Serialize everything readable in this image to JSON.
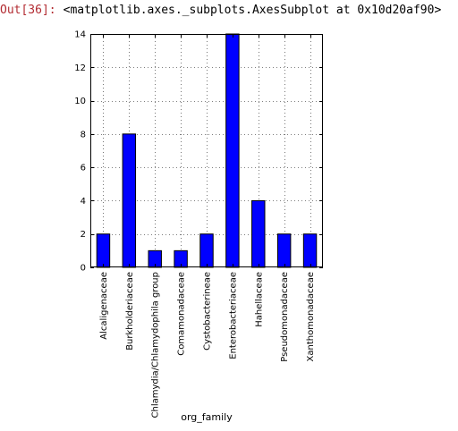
{
  "cell": {
    "prompt": "Out[36]:",
    "text": "<matplotlib.axes._subplots.AxesSubplot at 0x10d20af90>"
  },
  "chart_data": {
    "type": "bar",
    "categories": [
      "Alcaligenaceae",
      "Burkholderiaceae",
      "Chlamydia/Chlamydophila group",
      "Comamonadaceae",
      "Cystobacterineae",
      "Enterobacteriaceae",
      "Hahellaceae",
      "Pseudomonadaceae",
      "Xanthomonadaceae"
    ],
    "values": [
      2,
      8,
      1,
      1,
      2,
      14,
      4,
      2,
      2
    ],
    "title": "",
    "xlabel": "org_family",
    "ylabel": "",
    "ylim": [
      0,
      14
    ],
    "yticks": [
      0,
      2,
      4,
      6,
      8,
      10,
      12,
      14
    ],
    "grid": true,
    "bar_color": "#0000ff",
    "edge_color": "#000000"
  }
}
